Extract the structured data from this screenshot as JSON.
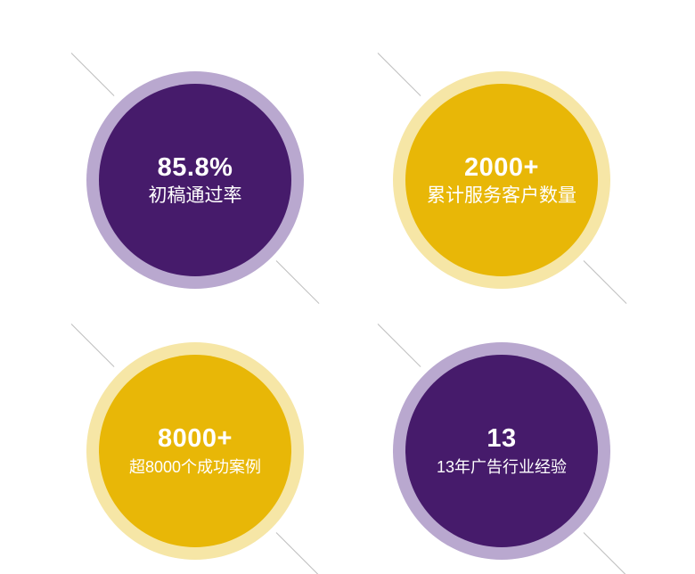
{
  "stats": [
    {
      "value": "85.8%",
      "label": "初稿通过率",
      "theme": "purple"
    },
    {
      "value": "2000+",
      "label": "累计服务客户数量",
      "theme": "gold"
    },
    {
      "value": "8000+",
      "label": "超8000个成功案例",
      "theme": "gold"
    },
    {
      "value": "13",
      "label": "13年广告行业经验",
      "theme": "purple"
    }
  ],
  "colors": {
    "purple_inner": "#461b6b",
    "purple_ring": "#b9a8cf",
    "gold_inner": "#e8b707",
    "gold_ring": "#f6e6a6",
    "line": "#bdbdbd"
  }
}
